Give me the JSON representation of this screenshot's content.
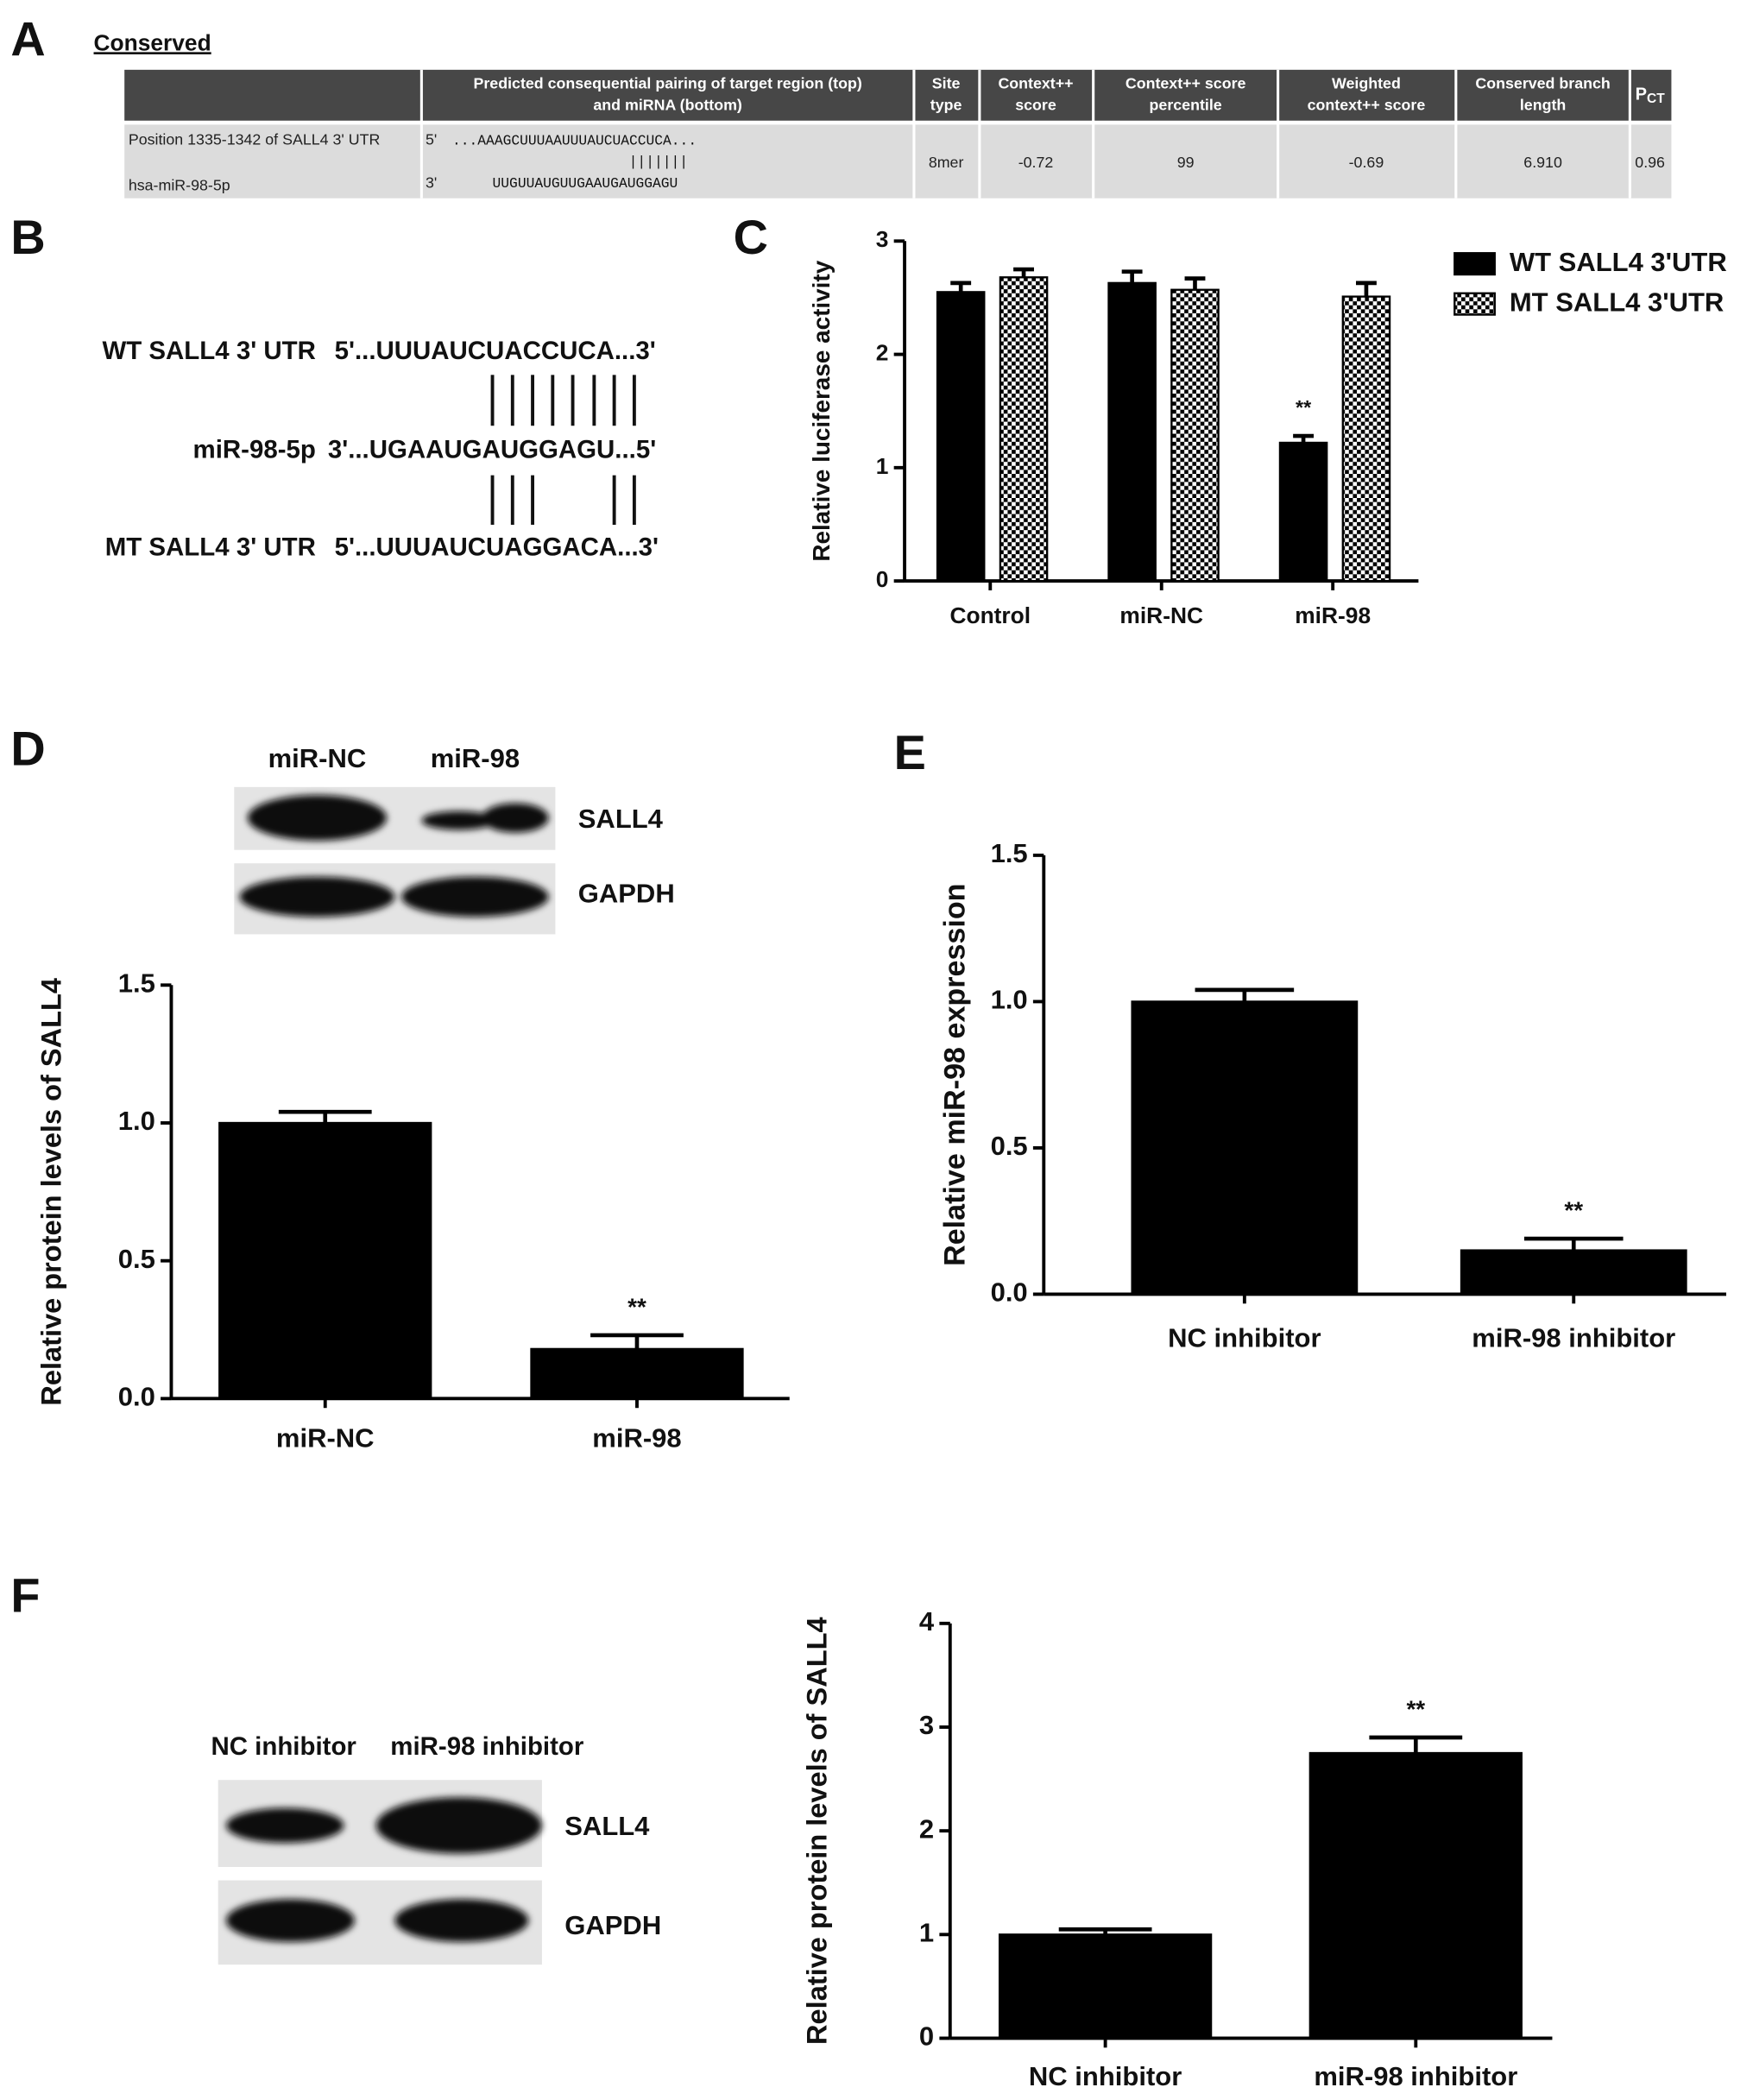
{
  "panel_labels": [
    "A",
    "B",
    "C",
    "D",
    "E",
    "F"
  ],
  "table": {
    "title": "Conserved",
    "headers": [
      "Predicted consequential pairing of target region (top)",
      "and miRNA (bottom)",
      "Site",
      "type",
      "Context++",
      "score",
      "Context++ score",
      "percentile",
      "Weighted",
      "context++ score",
      "Conserved branch",
      "length"
    ],
    "pct_header": {
      "main": "P",
      "sub": "CT"
    },
    "row": {
      "position": "Position 1335-1342 of SALL4 3' UTR",
      "mirna": "hsa-miR-98-5p",
      "end_top": "5'",
      "target": "...AAAGCUUUAAUUUAUCUACCUCA...",
      "pairing": "|||||||",
      "end_bottom": "3'",
      "mirna_seq": "UUGUUAUGUUGAAUGAUGGAGU",
      "cells": [
        "8mer",
        "-0.72",
        "99",
        "-0.69",
        "6.910",
        "0.96"
      ]
    }
  },
  "sequence": {
    "rows": [
      {
        "label": "WT SALL4 3' UTR",
        "seq": "5'...UUUAUCUACCUCA...3'"
      },
      {
        "label": "miR-98-5p",
        "seq": "3'...UGAAUGAUGGAGU...5'"
      },
      {
        "label": "MT SALL4 3' UTR",
        "seq": "5'...UUUAUCUAGGACA...3'"
      }
    ]
  },
  "blots": [
    {
      "lanes": [
        "miR-NC",
        "miR-98"
      ],
      "proteins": [
        "SALL4",
        "GAPDH"
      ]
    },
    {
      "lanes": [
        "NC inhibitor",
        "miR-98 inhibitor"
      ],
      "proteins": [
        "SALL4",
        "GAPDH"
      ]
    }
  ],
  "chart_data": [
    {
      "type": "bar",
      "y_label": "Relative luciferase activity",
      "categories": [
        "Control",
        "miR-NC",
        "miR-98"
      ],
      "series": [
        {
          "name": "WT SALL4 3'UTR",
          "color": "#000000",
          "values": [
            2.55,
            2.63,
            1.22
          ],
          "errors": [
            0.08,
            0.1,
            0.06
          ]
        },
        {
          "name": "MT SALL4 3'UTR",
          "color": "#000000",
          "hatch": "checker",
          "values": [
            2.68,
            2.57,
            2.51
          ],
          "errors": [
            0.07,
            0.1,
            0.12
          ]
        }
      ],
      "ylim": [
        0,
        3
      ],
      "yticks": [
        0,
        1,
        2,
        3
      ],
      "legend": "right",
      "annotations": [
        {
          "text": "**",
          "category": "miR-98"
        }
      ]
    },
    {
      "type": "bar",
      "y_label": "Relative protein levels of SALL4",
      "categories": [
        "miR-NC",
        "miR-98"
      ],
      "color": "#000000",
      "values": [
        1.0,
        0.18
      ],
      "errors": [
        0.04,
        0.05
      ],
      "ylim": [
        0,
        1.5
      ],
      "yticks": [
        {
          "value": 0,
          "label": "0.0"
        },
        {
          "value": 0.5,
          "label": "0.5"
        },
        {
          "value": 1,
          "label": "1.0"
        },
        {
          "value": 1.5,
          "label": "1.5"
        }
      ],
      "annotations": [
        {
          "text": "**",
          "category": "miR-98"
        }
      ]
    },
    {
      "type": "bar",
      "y_label": "Relative miR-98 expression",
      "categories": [
        "NC inhibitor",
        "miR-98 inhibitor"
      ],
      "color": "#000000",
      "values": [
        1.0,
        0.15
      ],
      "errors": [
        0.04,
        0.04
      ],
      "ylim": [
        0,
        1.5
      ],
      "yticks": [
        {
          "value": 0,
          "label": "0.0"
        },
        {
          "value": 0.5,
          "label": "0.5"
        },
        {
          "value": 1,
          "label": "1.0"
        },
        {
          "value": 1.5,
          "label": "1.5"
        }
      ],
      "annotations": [
        {
          "text": "**",
          "category": "miR-98 inhibitor"
        }
      ]
    },
    {
      "type": "bar",
      "y_label": "Relative protein levels of SALL4",
      "categories": [
        "NC inhibitor",
        "miR-98 inhibitor"
      ],
      "color": "#000000",
      "values": [
        1.0,
        2.75
      ],
      "errors": [
        0.05,
        0.15
      ],
      "ylim": [
        0,
        4
      ],
      "yticks": [
        0,
        1,
        2,
        3,
        4
      ],
      "annotations": [
        {
          "text": "**",
          "category": "miR-98 inhibitor"
        }
      ]
    }
  ]
}
